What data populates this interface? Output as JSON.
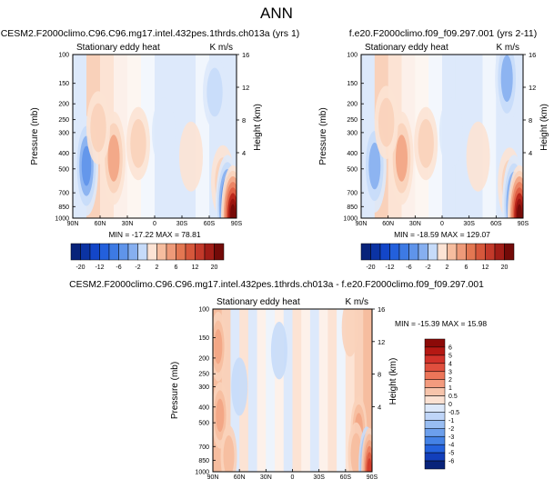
{
  "page_title": "ANN",
  "chart_data": [
    {
      "type": "heatmap",
      "title": "CESM2.F2000climo.C96.C96.mg17.intel.432pes.1thrds.ch013a (yrs 1)",
      "subtitle": "Stationary eddy heat",
      "units": "K m/s",
      "ylabel": "Pressure (mb)",
      "y2label": "Height (km)",
      "x_ticks": [
        "90N",
        "60N",
        "30N",
        "0",
        "30S",
        "60S",
        "90S"
      ],
      "y_ticks": [
        "100",
        "150",
        "200",
        "250",
        "300",
        "400",
        "500",
        "700",
        "850",
        "1000"
      ],
      "y_values": [
        100,
        150,
        200,
        250,
        300,
        400,
        500,
        700,
        850,
        1000
      ],
      "y2_ticks": [
        "16",
        "12",
        "8",
        "4"
      ],
      "stats": "MIN = -17.22   MAX = 78.81",
      "colorbar_labels": [
        "-20",
        "-12",
        "-6",
        "-2",
        "2",
        "6",
        "12",
        "20"
      ],
      "field": [
        {
          "lat": 75,
          "p": 480,
          "v": -6
        },
        {
          "lat": 45,
          "p": 430,
          "v": 5
        },
        {
          "lat": 62,
          "p": 280,
          "v": 2
        },
        {
          "lat": 18,
          "p": 350,
          "v": 2
        },
        {
          "lat": -10,
          "p": 300,
          "v": -1.5
        },
        {
          "lat": -40,
          "p": 420,
          "v": 1.5
        },
        {
          "lat": -66,
          "p": 170,
          "v": -2
        },
        {
          "lat": -75,
          "p": 600,
          "v": 2
        },
        {
          "lat": -80,
          "p": 830,
          "v": -12
        },
        {
          "lat": -86,
          "p": 960,
          "v": 20
        }
      ]
    },
    {
      "type": "heatmap",
      "title": "f.e20.F2000climo.f09_f09.297.001 (yrs 2-11)",
      "subtitle": "Stationary eddy heat",
      "units": "K m/s",
      "ylabel": "Pressure (mb)",
      "y2label": "Height (km)",
      "x_ticks": [
        "90N",
        "60N",
        "30N",
        "0",
        "30S",
        "60S",
        "90S"
      ],
      "y_ticks": [
        "100",
        "150",
        "200",
        "250",
        "300",
        "400",
        "500",
        "700",
        "850",
        "1000"
      ],
      "y_values": [
        100,
        150,
        200,
        250,
        300,
        400,
        500,
        700,
        850,
        1000
      ],
      "y2_ticks": [
        "16",
        "12",
        "8",
        "4"
      ],
      "stats": "MIN = -18.59   MAX = 129.07",
      "colorbar_labels": [
        "-20",
        "-12",
        "-6",
        "-2",
        "2",
        "6",
        "12",
        "20"
      ],
      "field": [
        {
          "lat": 75,
          "p": 480,
          "v": -5
        },
        {
          "lat": 45,
          "p": 430,
          "v": 5
        },
        {
          "lat": 62,
          "p": 260,
          "v": 2
        },
        {
          "lat": 18,
          "p": 350,
          "v": 2
        },
        {
          "lat": -10,
          "p": 300,
          "v": -1.5
        },
        {
          "lat": -40,
          "p": 420,
          "v": 1.5
        },
        {
          "lat": -72,
          "p": 140,
          "v": -5
        },
        {
          "lat": -75,
          "p": 620,
          "v": 2
        },
        {
          "lat": -80,
          "p": 830,
          "v": -10
        },
        {
          "lat": -86,
          "p": 960,
          "v": 20
        }
      ]
    },
    {
      "type": "heatmap",
      "title": "CESM2.F2000climo.C96.C96.mg17.intel.432pes.1thrds.ch013a - f.e20.F2000climo.f09_f09.297.001",
      "subtitle": "Stationary eddy heat",
      "units": "K m/s",
      "ylabel": "Pressure (mb)",
      "y2label": "Height (km)",
      "x_ticks": [
        "90N",
        "60N",
        "30N",
        "0",
        "30S",
        "60S",
        "90S"
      ],
      "y_ticks": [
        "100",
        "150",
        "200",
        "250",
        "300",
        "400",
        "500",
        "700",
        "850",
        "1000"
      ],
      "y_values": [
        100,
        150,
        200,
        250,
        300,
        400,
        500,
        700,
        850,
        1000
      ],
      "y2_ticks": [
        "16",
        "12",
        "8",
        "4"
      ],
      "stats": "MIN = -15.39  MAX =  15.98",
      "colorbar_labels": [
        "6",
        "5",
        "4",
        "3",
        "2",
        "1",
        "0.5",
        "0",
        "-0.5",
        "-1",
        "-2",
        "-3",
        "-4",
        "-5",
        "-6"
      ],
      "field": [
        {
          "lat": 84,
          "p": 170,
          "v": 2.5
        },
        {
          "lat": 82,
          "p": 450,
          "v": 2
        },
        {
          "lat": 72,
          "p": 800,
          "v": 1.2
        },
        {
          "lat": 60,
          "p": 300,
          "v": -0.6
        },
        {
          "lat": 42,
          "p": 250,
          "v": 0.4
        },
        {
          "lat": 15,
          "p": 180,
          "v": -0.5
        },
        {
          "lat": 0,
          "p": 600,
          "v": 0.3
        },
        {
          "lat": -25,
          "p": 400,
          "v": -0.4
        },
        {
          "lat": -50,
          "p": 250,
          "v": 0.4
        },
        {
          "lat": -65,
          "p": 130,
          "v": 0.6
        },
        {
          "lat": -75,
          "p": 550,
          "v": 2
        },
        {
          "lat": -72,
          "p": 780,
          "v": 1.5
        },
        {
          "lat": -84,
          "p": 920,
          "v": -4
        },
        {
          "lat": -87,
          "p": 980,
          "v": 5
        }
      ]
    }
  ],
  "colors": {
    "blues": [
      "#f1f6fd",
      "#dde9fb",
      "#c6dbf9",
      "#a9c8f4",
      "#86aff0",
      "#5f94ea",
      "#3d7ae4",
      "#2360dc",
      "#1346c8",
      "#0b33a3",
      "#08237a"
    ],
    "reds": [
      "#fcf0ea",
      "#fce3d4",
      "#f9d1ba",
      "#f6bd9f",
      "#f2a483",
      "#ea8060",
      "#de5c40",
      "#cf3a2a",
      "#b72218",
      "#98130e",
      "#730a08"
    ],
    "blue8": [
      "#08237a",
      "#0b33a3",
      "#1346c8",
      "#2360dc",
      "#3d7ae4",
      "#5f94ea",
      "#86aff0",
      "#c6dbf9"
    ],
    "red8": [
      "#fce3d4",
      "#f6bd9f",
      "#ee9a79",
      "#e37752",
      "#d6573b",
      "#c3392a",
      "#a11d17",
      "#730a08"
    ],
    "diffBar": [
      "#8c0a08",
      "#b51813",
      "#d2322a",
      "#e04f3e",
      "#ec7559",
      "#f39b7e",
      "#f7c4ab",
      "#fbe1d2",
      "#dce8fa",
      "#bfd5f8",
      "#98bdf2",
      "#6c9fec",
      "#4482e6",
      "#2462dd",
      "#123fbb",
      "#08237a"
    ]
  }
}
